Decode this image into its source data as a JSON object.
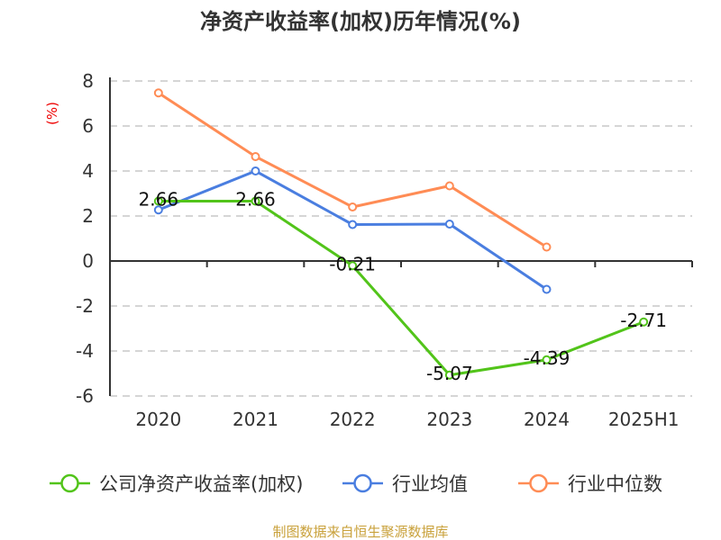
{
  "chart_data": {
    "type": "line",
    "title": "净资产收益率(加权)历年情况(%)",
    "ylabel": "(%)",
    "xlabel": "",
    "categories": [
      "2020",
      "2021",
      "2022",
      "2023",
      "2024",
      "2025H1"
    ],
    "ylim": [
      -6,
      8
    ],
    "yticks": [
      -6,
      -4,
      -2,
      0,
      2,
      4,
      6,
      8
    ],
    "grid": true,
    "legend_position": "bottom",
    "series": [
      {
        "name": "公司净资产收益率(加权)",
        "color": "#52c41a",
        "values": [
          2.66,
          2.66,
          -0.21,
          -5.07,
          -4.39,
          -2.71
        ],
        "labels": [
          "2.66",
          "2.66",
          "-0.21",
          "-5.07",
          "-4.39",
          "-2.71"
        ]
      },
      {
        "name": "行业均值",
        "color": "#4a7ee0",
        "values": [
          2.27,
          4.0,
          1.62,
          1.64,
          -1.26,
          null
        ]
      },
      {
        "name": "行业中位数",
        "color": "#ff8c55",
        "values": [
          7.47,
          4.64,
          2.4,
          3.34,
          0.62,
          null
        ]
      }
    ]
  },
  "footer": "制图数据来自恒生聚源数据库"
}
